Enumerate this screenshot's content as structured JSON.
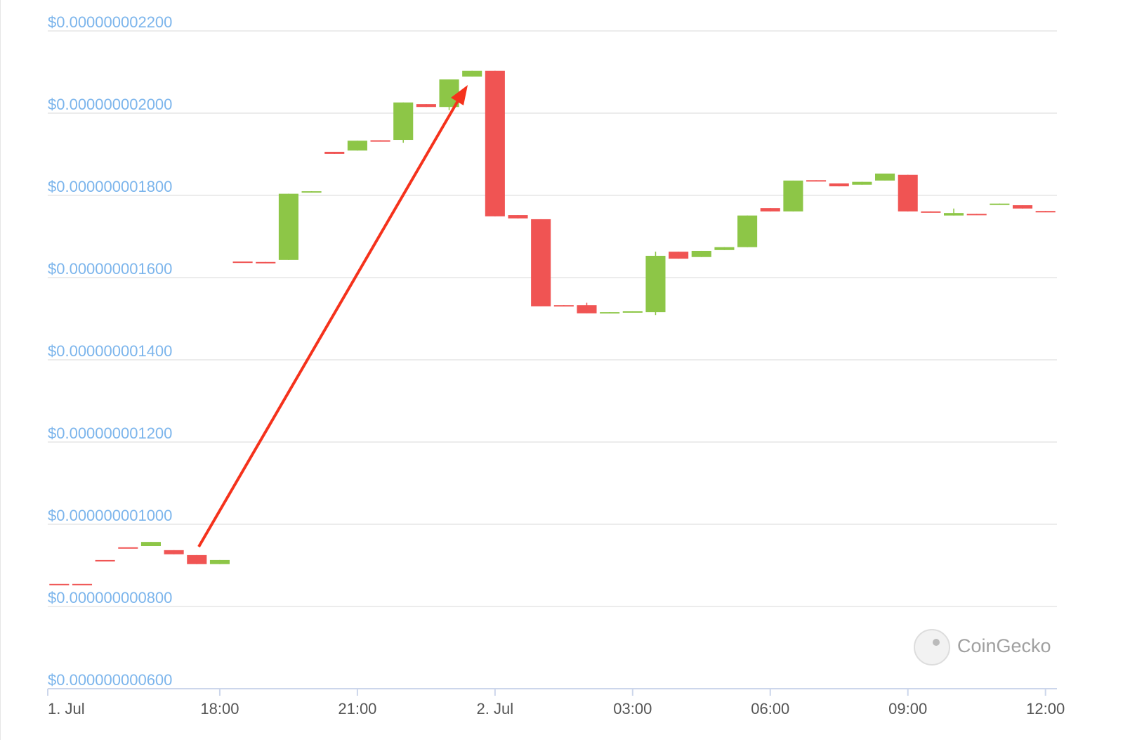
{
  "chart_data": {
    "type": "candlestick",
    "watermark": "CoinGecko",
    "up_color": "#8dc647",
    "down_color": "#f05453",
    "grid": true,
    "x": [
      14.5,
      15,
      15.5,
      16,
      16.5,
      17,
      17.5,
      18,
      18.5,
      19,
      19.5,
      20,
      20.5,
      21,
      21.5,
      22,
      22.5,
      23,
      23.5,
      24,
      24.5,
      25,
      25.5,
      26,
      26.5,
      27,
      27.5,
      28,
      28.5,
      29,
      29.5,
      30,
      30.5,
      31,
      31.5,
      32,
      32.5,
      33,
      33.5,
      34,
      34.5,
      35,
      35.5,
      36
    ],
    "open": [
      8.55e-10,
      8.55e-10,
      9.13e-10,
      9.44e-10,
      9.47e-10,
      9.37e-10,
      9.25e-10,
      9.03e-10,
      1.639e-09,
      1.638e-09,
      1.643e-09,
      1.808e-09,
      1.906e-09,
      1.909e-09,
      1.934e-09,
      1.935e-09,
      2.022e-09,
      2.015e-09,
      2.089e-09,
      2.103e-09,
      1.752e-09,
      1.742e-09,
      1.533e-09,
      1.533e-09,
      1.513e-09,
      1.515e-09,
      1.516e-09,
      1.663e-09,
      1.65e-09,
      1.667e-09,
      1.674e-09,
      1.769e-09,
      1.761e-09,
      1.837e-09,
      1.829e-09,
      1.826e-09,
      1.836e-09,
      1.85e-09,
      1.761e-09,
      1.751e-09,
      1.755e-09,
      1.778e-09,
      1.776e-09,
      1.762e-09
    ],
    "high": [
      8.55e-10,
      8.55e-10,
      9.13e-10,
      9.44e-10,
      9.57e-10,
      9.37e-10,
      9.25e-10,
      9.13e-10,
      1.639e-09,
      1.638e-09,
      1.804e-09,
      1.81e-09,
      1.906e-09,
      1.933e-09,
      1.934e-09,
      2.026e-09,
      2.022e-09,
      2.082e-09,
      2.103e-09,
      2.103e-09,
      1.752e-09,
      1.742e-09,
      1.533e-09,
      1.539e-09,
      1.516e-09,
      1.518e-09,
      1.663e-09,
      1.663e-09,
      1.665e-09,
      1.674e-09,
      1.751e-09,
      1.769e-09,
      1.836e-09,
      1.837e-09,
      1.829e-09,
      1.833e-09,
      1.853e-09,
      1.85e-09,
      1.761e-09,
      1.768e-09,
      1.755e-09,
      1.78e-09,
      1.776e-09,
      1.762e-09
    ],
    "low": [
      8.55e-10,
      8.55e-10,
      9.13e-10,
      9.44e-10,
      9.47e-10,
      9.27e-10,
      9.03e-10,
      9.03e-10,
      1.639e-09,
      1.636e-09,
      1.643e-09,
      1.808e-09,
      1.901e-09,
      1.909e-09,
      1.932e-09,
      1.928e-09,
      2.015e-09,
      2.007e-09,
      2.089e-09,
      1.749e-09,
      1.744e-09,
      1.53e-09,
      1.53e-09,
      1.513e-09,
      1.513e-09,
      1.515e-09,
      1.509e-09,
      1.646e-09,
      1.65e-09,
      1.667e-09,
      1.674e-09,
      1.761e-09,
      1.761e-09,
      1.835e-09,
      1.822e-09,
      1.826e-09,
      1.836e-09,
      1.761e-09,
      1.759e-09,
      1.751e-09,
      1.753e-09,
      1.778e-09,
      1.768e-09,
      1.76e-09
    ],
    "close": [
      8.55e-10,
      8.55e-10,
      9.13e-10,
      9.44e-10,
      9.57e-10,
      9.27e-10,
      9.03e-10,
      9.13e-10,
      1.639e-09,
      1.636e-09,
      1.804e-09,
      1.81e-09,
      1.901e-09,
      1.933e-09,
      1.932e-09,
      2.026e-09,
      2.015e-09,
      2.082e-09,
      2.103e-09,
      1.749e-09,
      1.744e-09,
      1.53e-09,
      1.53e-09,
      1.513e-09,
      1.516e-09,
      1.518e-09,
      1.653e-09,
      1.646e-09,
      1.665e-09,
      1.674e-09,
      1.751e-09,
      1.761e-09,
      1.836e-09,
      1.835e-09,
      1.822e-09,
      1.833e-09,
      1.853e-09,
      1.761e-09,
      1.759e-09,
      1.757e-09,
      1.753e-09,
      1.78e-09,
      1.768e-09,
      1.76e-09
    ],
    "xlim": [
      14.25,
      36.25
    ],
    "xticks": [
      {
        "value": 14.25,
        "label": "1. Jul"
      },
      {
        "value": 18,
        "label": "18:00"
      },
      {
        "value": 21,
        "label": "21:00"
      },
      {
        "value": 24,
        "label": "2. Jul"
      },
      {
        "value": 27,
        "label": "03:00"
      },
      {
        "value": 30,
        "label": "06:00"
      },
      {
        "value": 33,
        "label": "09:00"
      },
      {
        "value": 36,
        "label": "12:00"
      }
    ],
    "ylim": [
      6e-10,
      2.2e-09
    ],
    "yticks": [
      {
        "value": 6e-10,
        "label": "$0.000000000600"
      },
      {
        "value": 8e-10,
        "label": "$0.000000000800"
      },
      {
        "value": 1e-09,
        "label": "$0.000000001000"
      },
      {
        "value": 1.2e-09,
        "label": "$0.000000001200"
      },
      {
        "value": 1.4e-09,
        "label": "$0.000000001400"
      },
      {
        "value": 1.6e-09,
        "label": "$0.000000001600"
      },
      {
        "value": 1.8e-09,
        "label": "$0.000000001800"
      },
      {
        "value": 2e-09,
        "label": "$0.000000002000"
      },
      {
        "value": 2.2e-09,
        "label": "$0.000000002200"
      }
    ]
  }
}
